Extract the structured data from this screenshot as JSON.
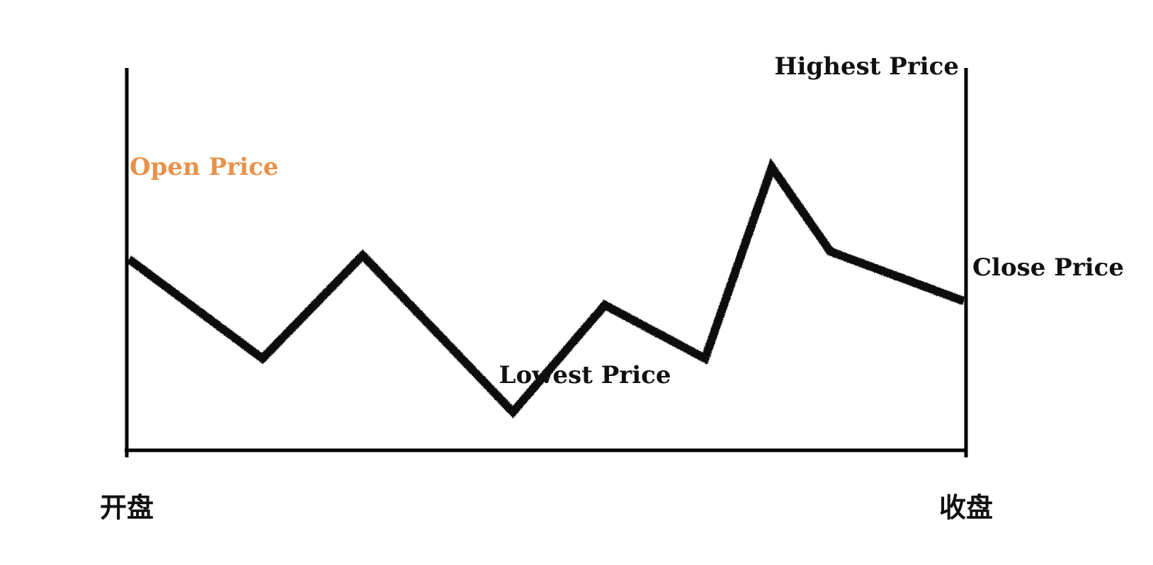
{
  "labels": {
    "open": "Open Price",
    "highest": "Highest Price",
    "lowest": "Lowest Price",
    "close": "Close Price"
  },
  "axis": {
    "start": "开盘",
    "end": "收盘"
  },
  "colors": {
    "line": "#111111",
    "axis": "#000000",
    "open_label": "#e8914a",
    "text": "#111111"
  },
  "price_path": [
    {
      "t": 0,
      "price": 50
    },
    {
      "t": 16,
      "price": 24
    },
    {
      "t": 28,
      "price": 51
    },
    {
      "t": 46,
      "price": 10
    },
    {
      "t": 57,
      "price": 38
    },
    {
      "t": 69,
      "price": 24
    },
    {
      "t": 77,
      "price": 74
    },
    {
      "t": 84,
      "price": 52
    },
    {
      "t": 100,
      "price": 39
    }
  ]
}
